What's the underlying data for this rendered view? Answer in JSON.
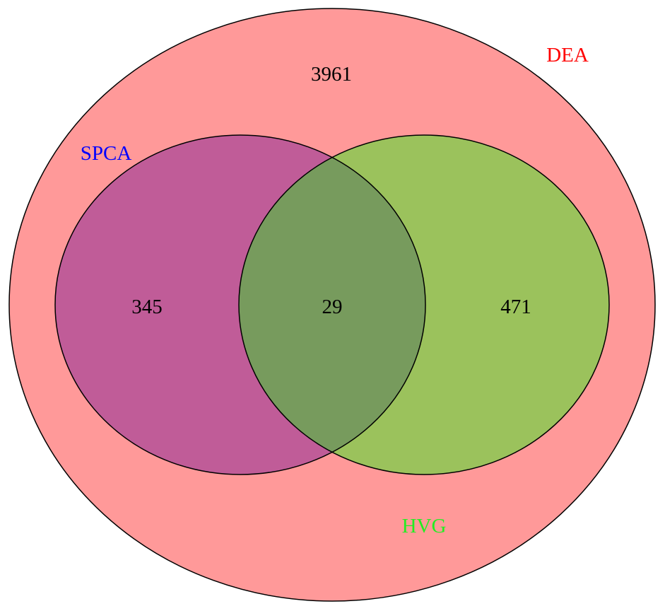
{
  "sets": {
    "dea": {
      "label": "DEA",
      "label_color": "#ff0000",
      "fill": "#ff9999"
    },
    "spca": {
      "label": "SPCA",
      "label_color": "#0000ff",
      "fill": "#c05c98"
    },
    "hvg": {
      "label": "HVG",
      "label_color": "#22ee22",
      "fill": "#9bc25c"
    }
  },
  "intersection_fill": "#779b5d",
  "counts": {
    "dea_only": "3961",
    "spca_only": "345",
    "spca_hvg": "29",
    "hvg_only": "471"
  }
}
